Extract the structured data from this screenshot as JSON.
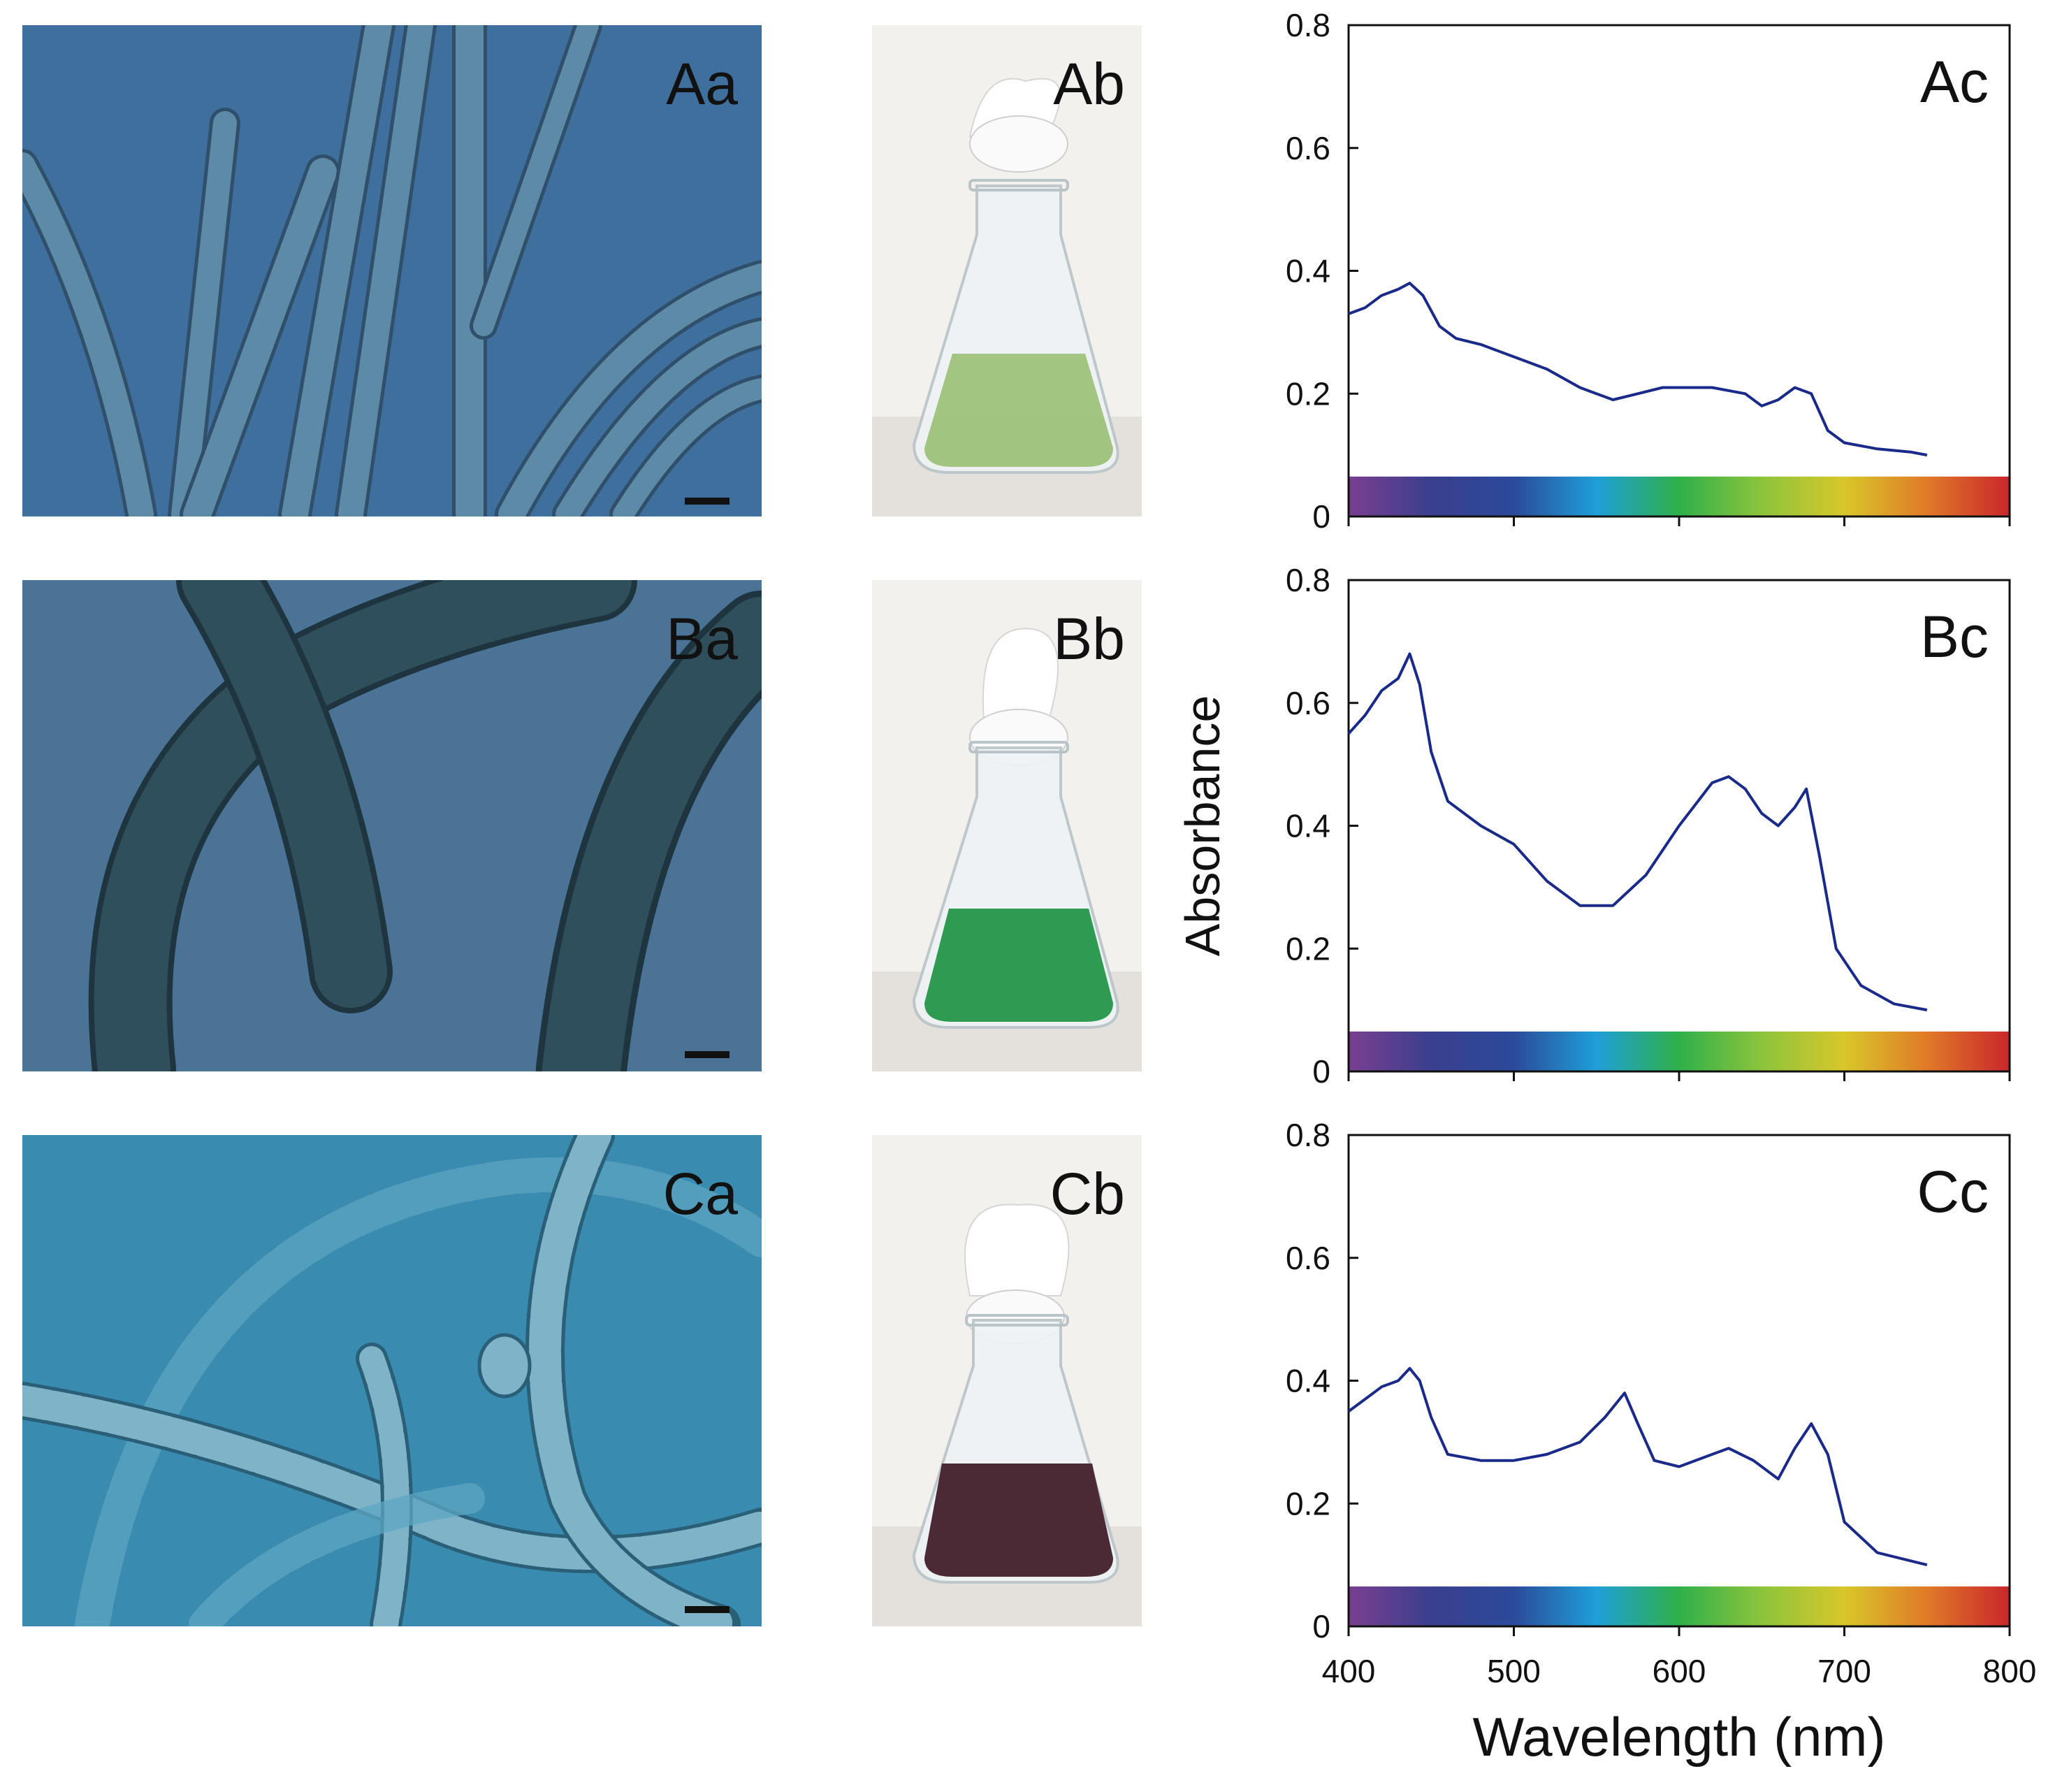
{
  "figure": {
    "rows": [
      {
        "micrograph_label": "Aa",
        "flask_label": "Ab",
        "micrograph_colors": {
          "bg": "#3f6f9c",
          "filament": "#5d8aa6",
          "edge": "#2f4f6a"
        },
        "culture_color": "#9dc27a"
      },
      {
        "micrograph_label": "Ba",
        "flask_label": "Bb",
        "micrograph_colors": {
          "bg": "#4a7396",
          "filament": "#2f4f5c",
          "edge": "#1e3540"
        },
        "culture_color": "#2e9a52"
      },
      {
        "micrograph_label": "Ca",
        "flask_label": "Cb",
        "micrograph_colors": {
          "bg": "#3a8bb0",
          "filament": "#7fb4c8",
          "edge": "#2a5f78"
        },
        "culture_color": "#4c2a35"
      }
    ],
    "spectrum_colors": [
      "#7a3f8f",
      "#3a3f8e",
      "#2b4a9a",
      "#1f9fd8",
      "#2fb04a",
      "#8cc43c",
      "#d8c72a",
      "#e07a27",
      "#c9262c"
    ]
  },
  "chart_data": [
    {
      "type": "line",
      "panel_label": "Ac",
      "xlim": [
        400,
        800
      ],
      "ylim": [
        0,
        0.8
      ],
      "yticks": [
        "0",
        "0.2",
        "0.4",
        "0.6",
        "0.8"
      ],
      "xticks": [],
      "x": [
        400,
        410,
        420,
        430,
        437,
        445,
        455,
        465,
        480,
        500,
        520,
        540,
        560,
        575,
        590,
        600,
        620,
        640,
        650,
        660,
        670,
        680,
        690,
        700,
        720,
        740,
        750
      ],
      "y": [
        0.33,
        0.34,
        0.36,
        0.37,
        0.38,
        0.36,
        0.31,
        0.29,
        0.28,
        0.26,
        0.24,
        0.21,
        0.19,
        0.2,
        0.21,
        0.21,
        0.21,
        0.2,
        0.18,
        0.19,
        0.21,
        0.2,
        0.14,
        0.12,
        0.11,
        0.105,
        0.1
      ],
      "line_color": "#1a2a8a"
    },
    {
      "type": "line",
      "panel_label": "Bc",
      "ylabel": "Absorbance",
      "xlim": [
        400,
        800
      ],
      "ylim": [
        0,
        0.8
      ],
      "yticks": [
        "0",
        "0.2",
        "0.4",
        "0.6",
        "0.8"
      ],
      "xticks": [],
      "x": [
        400,
        410,
        420,
        430,
        437,
        443,
        450,
        460,
        480,
        500,
        520,
        540,
        560,
        580,
        600,
        620,
        630,
        640,
        650,
        660,
        670,
        677,
        685,
        695,
        710,
        730,
        750
      ],
      "y": [
        0.55,
        0.58,
        0.62,
        0.64,
        0.68,
        0.63,
        0.52,
        0.44,
        0.4,
        0.37,
        0.31,
        0.27,
        0.27,
        0.32,
        0.4,
        0.47,
        0.48,
        0.46,
        0.42,
        0.4,
        0.43,
        0.46,
        0.35,
        0.2,
        0.14,
        0.11,
        0.1
      ],
      "line_color": "#1a2a8a"
    },
    {
      "type": "line",
      "panel_label": "Cc",
      "xlabel": "Wavelength (nm)",
      "xlim": [
        400,
        800
      ],
      "ylim": [
        0,
        0.8
      ],
      "yticks": [
        "0",
        "0.2",
        "0.4",
        "0.6",
        "0.8"
      ],
      "xticks": [
        "400",
        "500",
        "600",
        "700",
        "800"
      ],
      "x": [
        400,
        410,
        420,
        430,
        437,
        443,
        450,
        460,
        480,
        500,
        520,
        540,
        555,
        567,
        575,
        585,
        600,
        620,
        630,
        645,
        660,
        670,
        680,
        690,
        700,
        720,
        750
      ],
      "y": [
        0.35,
        0.37,
        0.39,
        0.4,
        0.42,
        0.4,
        0.34,
        0.28,
        0.27,
        0.27,
        0.28,
        0.3,
        0.34,
        0.38,
        0.33,
        0.27,
        0.26,
        0.28,
        0.29,
        0.27,
        0.24,
        0.29,
        0.33,
        0.28,
        0.17,
        0.12,
        0.1
      ],
      "line_color": "#1a2a8a"
    }
  ]
}
